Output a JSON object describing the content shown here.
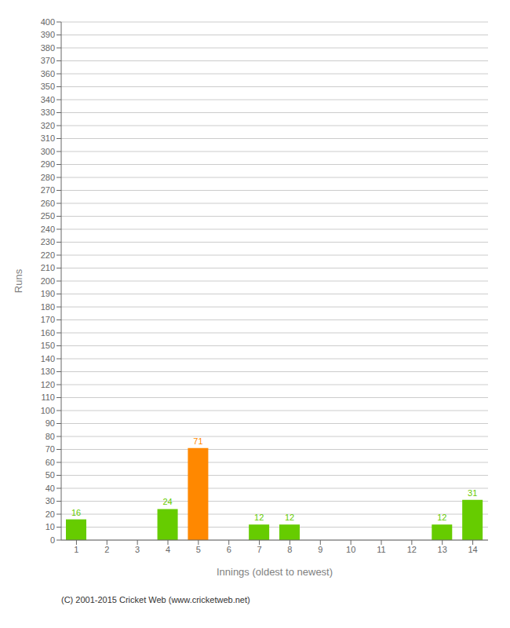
{
  "chart_data": {
    "type": "bar",
    "xlabel": "Innings (oldest to newest)",
    "ylabel": "Runs",
    "categories": [
      1,
      2,
      3,
      4,
      5,
      6,
      7,
      8,
      9,
      10,
      11,
      12,
      13,
      14
    ],
    "values": [
      16,
      0,
      0,
      24,
      71,
      0,
      12,
      12,
      0,
      0,
      0,
      0,
      12,
      31
    ],
    "colors": [
      "#66cc00",
      "#66cc00",
      "#66cc00",
      "#66cc00",
      "#ff8800",
      "#66cc00",
      "#66cc00",
      "#66cc00",
      "#66cc00",
      "#66cc00",
      "#66cc00",
      "#66cc00",
      "#66cc00",
      "#66cc00"
    ],
    "ylim": [
      0,
      400
    ],
    "yticks": [
      0,
      10,
      20,
      30,
      40,
      50,
      60,
      70,
      80,
      90,
      100,
      110,
      120,
      130,
      140,
      150,
      160,
      170,
      180,
      190,
      200,
      210,
      220,
      230,
      240,
      250,
      260,
      270,
      280,
      290,
      300,
      310,
      320,
      330,
      340,
      350,
      360,
      370,
      380,
      390,
      400
    ],
    "grid": true,
    "data_labels": true,
    "annotations": [
      "(C) 2001-2015 Cricket Web (www.cricketweb.net)"
    ]
  }
}
